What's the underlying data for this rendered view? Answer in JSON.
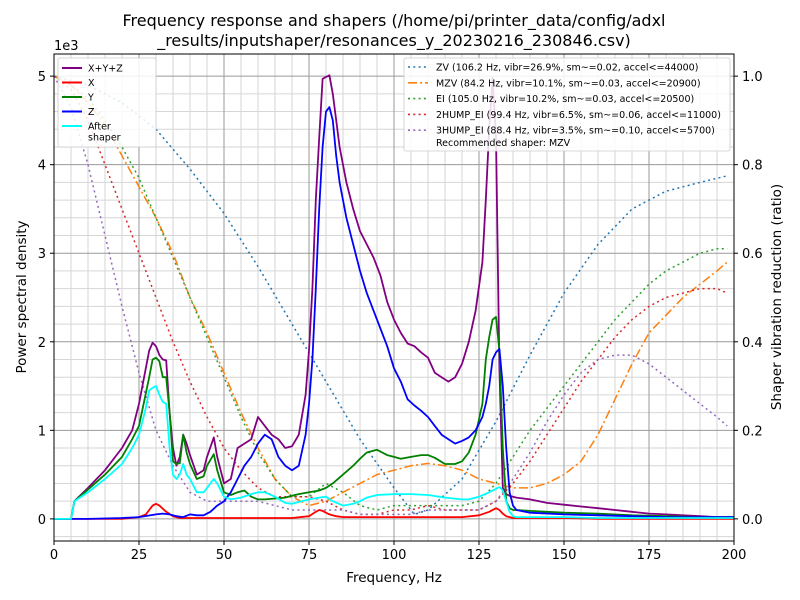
{
  "chart_data": {
    "type": "line",
    "title_lines": [
      "Frequency response and shapers (/home/pi/printer_data/config/adxl",
      "_results/inputshaper/resonances_y_20230216_230846.csv)"
    ],
    "xlabel": "Frequency, Hz",
    "ylabel": "Power spectral density",
    "y2label": "Shaper vibration reduction (ratio)",
    "y_offset_text": "1e3",
    "xlim": [
      0,
      200
    ],
    "ylim": [
      -0.25,
      5.25
    ],
    "y2lim": [
      -0.05,
      1.05
    ],
    "xticks": [
      0,
      25,
      50,
      75,
      100,
      125,
      150,
      175,
      200
    ],
    "yticks": [
      0,
      1,
      2,
      3,
      4,
      5
    ],
    "y2ticks": [
      0.0,
      0.2,
      0.4,
      0.6,
      0.8,
      1.0
    ],
    "grid": true,
    "legend_left_placement": "top-left",
    "legend_right_placement": "top-right",
    "recommended_text": "Recommended shaper: MZV",
    "psd_series": [
      {
        "name": "X+Y+Z",
        "color": "#800080",
        "x": [
          0,
          5,
          6,
          10,
          15,
          20,
          23,
          25,
          28,
          29,
          30,
          31,
          32,
          33,
          34,
          35,
          36,
          37,
          38,
          39,
          40,
          42,
          44,
          45,
          47,
          48,
          50,
          52,
          54,
          56,
          58,
          60,
          62,
          64,
          66,
          68,
          70,
          72,
          74,
          75,
          76,
          77,
          78,
          79,
          80,
          81,
          82,
          83,
          84,
          86,
          88,
          90,
          92,
          94,
          96,
          98,
          100,
          102,
          104,
          106,
          108,
          110,
          112,
          114,
          116,
          118,
          120,
          122,
          124,
          126,
          127,
          128,
          129,
          130,
          131,
          132,
          133,
          134,
          135,
          136,
          140,
          145,
          150,
          155,
          160,
          165,
          170,
          175,
          180,
          185,
          190,
          195,
          200
        ],
        "y": [
          0,
          0,
          0.2,
          0.35,
          0.55,
          0.8,
          1.0,
          1.3,
          1.9,
          1.99,
          1.95,
          1.85,
          1.8,
          1.79,
          1.2,
          0.8,
          0.6,
          0.7,
          0.95,
          0.85,
          0.72,
          0.5,
          0.55,
          0.7,
          0.92,
          0.7,
          0.4,
          0.45,
          0.8,
          0.85,
          0.9,
          1.15,
          1.05,
          0.95,
          0.9,
          0.8,
          0.82,
          0.95,
          1.4,
          1.9,
          2.6,
          3.6,
          4.3,
          4.97,
          4.99,
          5.01,
          4.8,
          4.5,
          4.2,
          3.8,
          3.5,
          3.25,
          3.1,
          2.95,
          2.75,
          2.45,
          2.25,
          2.1,
          1.98,
          1.95,
          1.88,
          1.82,
          1.65,
          1.6,
          1.55,
          1.6,
          1.75,
          2.0,
          2.35,
          2.9,
          3.6,
          4.4,
          4.98,
          4.3,
          1.7,
          0.35,
          0.28,
          0.26,
          0.25,
          0.24,
          0.22,
          0.18,
          0.16,
          0.14,
          0.12,
          0.1,
          0.08,
          0.06,
          0.05,
          0.04,
          0.03,
          0.02,
          0.02
        ]
      },
      {
        "name": "X",
        "color": "#ff0000",
        "x": [
          0,
          10,
          20,
          25,
          27,
          28,
          29,
          30,
          31,
          33,
          35,
          37,
          40,
          50,
          60,
          70,
          75,
          77,
          78,
          79,
          80,
          81,
          83,
          85,
          90,
          100,
          110,
          120,
          125,
          128,
          130,
          131,
          132,
          133,
          135,
          140,
          150,
          160,
          170,
          180,
          190,
          200
        ],
        "y": [
          0,
          0,
          0,
          0.02,
          0.05,
          0.1,
          0.15,
          0.17,
          0.15,
          0.08,
          0.03,
          0.01,
          0.01,
          0.01,
          0.01,
          0.01,
          0.03,
          0.08,
          0.1,
          0.09,
          0.07,
          0.05,
          0.03,
          0.02,
          0.02,
          0.02,
          0.02,
          0.02,
          0.04,
          0.08,
          0.12,
          0.1,
          0.06,
          0.03,
          0.01,
          0.01,
          0.01,
          0.0,
          0.0,
          0.0,
          0.0,
          0.0
        ]
      },
      {
        "name": "Y",
        "color": "#008000",
        "x": [
          0,
          5,
          6,
          10,
          15,
          20,
          23,
          25,
          28,
          29,
          30,
          31,
          32,
          33,
          34,
          35,
          36,
          37,
          38,
          39,
          40,
          42,
          44,
          45,
          47,
          48,
          50,
          52,
          54,
          56,
          58,
          60,
          62,
          65,
          68,
          70,
          72,
          75,
          78,
          80,
          82,
          85,
          88,
          90,
          92,
          95,
          98,
          100,
          102,
          105,
          108,
          110,
          112,
          115,
          118,
          120,
          122,
          124,
          126,
          127,
          128,
          129,
          130,
          131,
          132,
          133,
          134,
          135,
          136,
          140,
          145,
          150,
          160,
          170,
          180,
          190,
          200
        ],
        "y": [
          0,
          0,
          0.2,
          0.33,
          0.5,
          0.7,
          0.9,
          1.05,
          1.6,
          1.8,
          1.82,
          1.78,
          1.6,
          1.6,
          1.2,
          0.65,
          0.62,
          0.63,
          0.95,
          0.75,
          0.62,
          0.45,
          0.48,
          0.6,
          0.73,
          0.55,
          0.3,
          0.27,
          0.3,
          0.32,
          0.25,
          0.22,
          0.22,
          0.23,
          0.24,
          0.26,
          0.28,
          0.3,
          0.32,
          0.35,
          0.4,
          0.5,
          0.6,
          0.68,
          0.75,
          0.78,
          0.72,
          0.7,
          0.68,
          0.7,
          0.72,
          0.72,
          0.69,
          0.62,
          0.62,
          0.65,
          0.75,
          0.95,
          1.3,
          1.8,
          2.05,
          2.25,
          2.28,
          1.9,
          0.8,
          0.2,
          0.12,
          0.1,
          0.1,
          0.09,
          0.08,
          0.07,
          0.06,
          0.04,
          0.03,
          0.02,
          0.02
        ]
      },
      {
        "name": "Z",
        "color": "#0000ff",
        "x": [
          0,
          10,
          20,
          25,
          30,
          32,
          34,
          36,
          38,
          40,
          42,
          44,
          46,
          48,
          50,
          52,
          54,
          56,
          58,
          60,
          62,
          64,
          66,
          68,
          70,
          72,
          74,
          75,
          76,
          77,
          78,
          79,
          80,
          81,
          82,
          83,
          84,
          86,
          88,
          90,
          92,
          94,
          96,
          98,
          100,
          102,
          104,
          106,
          108,
          110,
          112,
          114,
          116,
          118,
          120,
          122,
          124,
          126,
          127,
          128,
          129,
          130,
          131,
          132,
          133,
          134,
          135,
          136,
          140,
          150,
          160,
          170,
          180,
          190,
          200
        ],
        "y": [
          0,
          0,
          0.01,
          0.02,
          0.05,
          0.06,
          0.05,
          0.03,
          0.02,
          0.05,
          0.04,
          0.04,
          0.08,
          0.15,
          0.2,
          0.3,
          0.45,
          0.6,
          0.7,
          0.85,
          0.95,
          0.9,
          0.7,
          0.6,
          0.55,
          0.6,
          0.95,
          1.3,
          1.8,
          2.6,
          3.5,
          4.2,
          4.6,
          4.65,
          4.5,
          4.1,
          3.8,
          3.4,
          3.1,
          2.8,
          2.55,
          2.35,
          2.15,
          1.95,
          1.7,
          1.55,
          1.35,
          1.28,
          1.22,
          1.15,
          1.05,
          0.95,
          0.9,
          0.85,
          0.88,
          0.92,
          1.0,
          1.15,
          1.3,
          1.5,
          1.8,
          1.88,
          1.92,
          1.5,
          0.8,
          0.3,
          0.15,
          0.1,
          0.07,
          0.05,
          0.04,
          0.03,
          0.02,
          0.02,
          0.02
        ]
      },
      {
        "name": "After\nshaper",
        "color": "#00ffff",
        "x": [
          0,
          5,
          6,
          10,
          15,
          20,
          23,
          25,
          27,
          28,
          29,
          30,
          31,
          32,
          33,
          34,
          35,
          36,
          37,
          38,
          39,
          40,
          42,
          44,
          45,
          47,
          48,
          50,
          52,
          55,
          58,
          60,
          62,
          65,
          68,
          70,
          72,
          75,
          78,
          80,
          82,
          85,
          88,
          90,
          92,
          95,
          100,
          105,
          110,
          115,
          120,
          122,
          125,
          128,
          130,
          131,
          132,
          133,
          134,
          135,
          136,
          140,
          150,
          160,
          170,
          180,
          190,
          200
        ],
        "y": [
          0,
          0,
          0.2,
          0.3,
          0.45,
          0.62,
          0.8,
          0.95,
          1.25,
          1.45,
          1.48,
          1.5,
          1.4,
          1.32,
          1.3,
          0.8,
          0.5,
          0.45,
          0.5,
          0.62,
          0.5,
          0.45,
          0.3,
          0.3,
          0.35,
          0.45,
          0.4,
          0.25,
          0.22,
          0.24,
          0.28,
          0.3,
          0.3,
          0.25,
          0.18,
          0.17,
          0.19,
          0.22,
          0.24,
          0.25,
          0.2,
          0.15,
          0.17,
          0.2,
          0.24,
          0.27,
          0.28,
          0.28,
          0.27,
          0.24,
          0.22,
          0.22,
          0.25,
          0.3,
          0.34,
          0.36,
          0.32,
          0.2,
          0.08,
          0.03,
          0.02,
          0.02,
          0.02,
          0.01,
          0.01,
          0.01,
          0.01,
          0.01
        ]
      }
    ],
    "shaper_series": [
      {
        "name": "ZV (106.2 Hz, vibr=26.9%, sm~=0.02, accel<=44000)",
        "color": "#1f77b4",
        "style": "dotted",
        "x": [
          0,
          10,
          20,
          30,
          40,
          50,
          60,
          70,
          80,
          90,
          100,
          106,
          110,
          120,
          130,
          140,
          150,
          160,
          170,
          180,
          190,
          198
        ],
        "y": [
          1.0,
          0.98,
          0.94,
          0.88,
          0.79,
          0.69,
          0.57,
          0.44,
          0.31,
          0.18,
          0.07,
          0.01,
          0.02,
          0.09,
          0.22,
          0.37,
          0.51,
          0.62,
          0.7,
          0.74,
          0.76,
          0.775
        ]
      },
      {
        "name": "MZV (84.2 Hz, vibr=10.1%, sm~=0.03, accel<=20900)",
        "color": "#ff7f0e",
        "style": "dashdot",
        "x": [
          0,
          5,
          10,
          15,
          20,
          25,
          30,
          35,
          40,
          45,
          50,
          55,
          60,
          65,
          70,
          75,
          80,
          85,
          90,
          95,
          100,
          105,
          110,
          115,
          120,
          125,
          130,
          135,
          140,
          145,
          150,
          155,
          160,
          165,
          170,
          175,
          180,
          185,
          190,
          195,
          198
        ],
        "y": [
          1.0,
          0.98,
          0.94,
          0.89,
          0.82,
          0.75,
          0.68,
          0.6,
          0.5,
          0.42,
          0.33,
          0.24,
          0.16,
          0.09,
          0.05,
          0.03,
          0.04,
          0.06,
          0.08,
          0.1,
          0.11,
          0.12,
          0.125,
          0.12,
          0.11,
          0.09,
          0.08,
          0.07,
          0.07,
          0.08,
          0.1,
          0.13,
          0.19,
          0.27,
          0.35,
          0.42,
          0.46,
          0.5,
          0.53,
          0.56,
          0.58
        ]
      },
      {
        "name": "EI (105.0 Hz, vibr=10.2%, sm~=0.03, accel<=20500)",
        "color": "#2ca02c",
        "style": "dotted",
        "x": [
          0,
          5,
          10,
          15,
          20,
          25,
          30,
          35,
          40,
          45,
          50,
          55,
          60,
          65,
          70,
          75,
          80,
          85,
          90,
          95,
          100,
          105,
          110,
          115,
          120,
          125,
          130,
          135,
          140,
          145,
          150,
          155,
          160,
          165,
          170,
          175,
          180,
          185,
          190,
          195,
          198
        ],
        "y": [
          1.0,
          0.98,
          0.95,
          0.9,
          0.84,
          0.77,
          0.68,
          0.59,
          0.5,
          0.41,
          0.32,
          0.23,
          0.15,
          0.09,
          0.05,
          0.05,
          0.08,
          0.06,
          0.03,
          0.02,
          0.03,
          0.03,
          0.03,
          0.03,
          0.03,
          0.04,
          0.08,
          0.14,
          0.2,
          0.25,
          0.3,
          0.35,
          0.4,
          0.45,
          0.49,
          0.53,
          0.56,
          0.58,
          0.6,
          0.61,
          0.61
        ]
      },
      {
        "name": "2HUMP_EI (99.4 Hz, vibr=6.5%, sm~=0.06, accel<=11000)",
        "color": "#d62728",
        "style": "dotted",
        "x": [
          0,
          5,
          10,
          15,
          20,
          25,
          30,
          35,
          40,
          45,
          50,
          55,
          60,
          65,
          70,
          75,
          80,
          85,
          90,
          95,
          100,
          105,
          110,
          115,
          120,
          125,
          130,
          135,
          140,
          145,
          150,
          155,
          160,
          165,
          170,
          175,
          180,
          185,
          190,
          195,
          198
        ],
        "y": [
          1.0,
          0.97,
          0.9,
          0.8,
          0.7,
          0.6,
          0.5,
          0.4,
          0.31,
          0.23,
          0.16,
          0.11,
          0.07,
          0.05,
          0.05,
          0.05,
          0.04,
          0.02,
          0.01,
          0.01,
          0.02,
          0.02,
          0.03,
          0.02,
          0.02,
          0.02,
          0.04,
          0.08,
          0.13,
          0.19,
          0.25,
          0.31,
          0.36,
          0.41,
          0.45,
          0.48,
          0.5,
          0.51,
          0.52,
          0.52,
          0.51
        ]
      },
      {
        "name": "3HUMP_EI (88.4 Hz, vibr=3.5%, sm~=0.10, accel<=5700)",
        "color": "#9467bd",
        "style": "dotted",
        "x": [
          0,
          5,
          10,
          15,
          20,
          25,
          30,
          35,
          40,
          45,
          50,
          55,
          60,
          65,
          70,
          75,
          80,
          85,
          90,
          95,
          100,
          105,
          110,
          115,
          120,
          125,
          130,
          135,
          140,
          145,
          150,
          155,
          160,
          165,
          170,
          175,
          180,
          185,
          190,
          195,
          198
        ],
        "y": [
          1.0,
          0.93,
          0.8,
          0.64,
          0.48,
          0.33,
          0.2,
          0.12,
          0.06,
          0.04,
          0.04,
          0.04,
          0.04,
          0.03,
          0.02,
          0.02,
          0.02,
          0.02,
          0.01,
          0.01,
          0.01,
          0.01,
          0.02,
          0.02,
          0.02,
          0.02,
          0.04,
          0.09,
          0.15,
          0.22,
          0.28,
          0.33,
          0.36,
          0.37,
          0.37,
          0.35,
          0.32,
          0.29,
          0.26,
          0.23,
          0.21
        ]
      }
    ]
  }
}
